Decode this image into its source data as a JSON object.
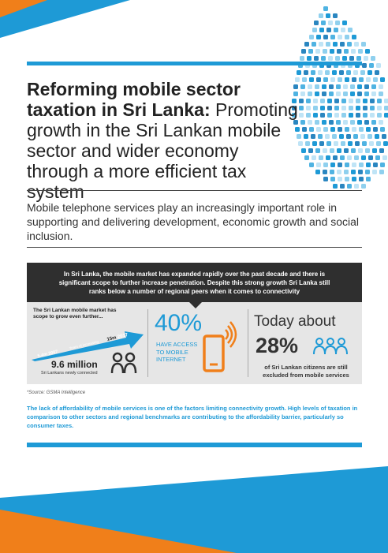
{
  "title": {
    "bold": "Reforming mobile sector taxation in Sri Lanka:",
    "light": " Promoting growth in the Sri Lankan mobile sector and wider economy through a more efficient tax system"
  },
  "intro": "Mobile telephone services play an increasingly important role in supporting and delivering development, economic growth and social inclusion.",
  "dark_box": "In Sri Lanka, the mobile market has expanded rapidly over the past decade and there is significant scope to further increase penetration. Despite this strong growth Sri Lanka still ranks below a number of regional peers when it comes to connectivity",
  "panel1": {
    "text": "The Sri Lankan mobile market has scope to grow even further...",
    "start_label": "5.4m",
    "start_year": "2007",
    "middle_label": "Years of increasing",
    "end_label": "15m",
    "end_year": "2017",
    "big_number": "9.6 million",
    "caption": "Sri Lankans newly connected"
  },
  "panel2": {
    "percent": "40%",
    "line1": "HAVE ACCESS",
    "line2": "TO MOBILE",
    "line3": "INTERNET"
  },
  "panel3": {
    "today": "Today about",
    "percent": "28%",
    "caption": "of Sri Lankan citizens are still excluded from mobile services"
  },
  "source": "*Source: GSMA Intelligence",
  "note": "The lack of affordability of mobile services is one of the factors limiting connectivity growth. High levels of taxation in comparison to other sectors and regional benchmarks are contributing to the affordability barrier, particularly so consumer taxes.",
  "colors": {
    "accent": "#1e9ad6",
    "orange": "#f07f1a",
    "dark": "#2f2f2f",
    "panel": "#e6e6e6"
  }
}
